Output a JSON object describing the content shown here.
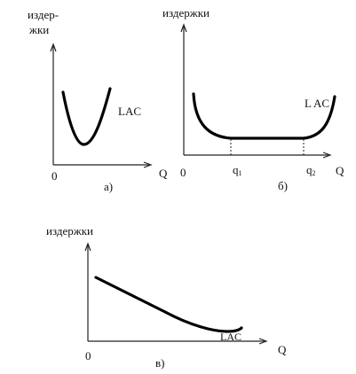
{
  "diagrams": [
    {
      "panel_label": "а)",
      "y_label_line1": "издер-",
      "y_label_line2": "жки",
      "x_label": "Q",
      "origin_label": "0",
      "curve_label": "LAC"
    },
    {
      "panel_label": "б)",
      "y_label": "издержки",
      "x_label": "Q",
      "origin_label": "0",
      "curve_label": "L AC",
      "q1_label": "q",
      "q1_sub": "1",
      "q2_label": "q",
      "q2_sub": "2"
    },
    {
      "panel_label": "в)",
      "y_label": "издержки",
      "x_label": "Q",
      "origin_label": "0",
      "curve_label": "LAC"
    }
  ],
  "colors": {
    "ink": "#000000",
    "background": "#ffffff"
  }
}
